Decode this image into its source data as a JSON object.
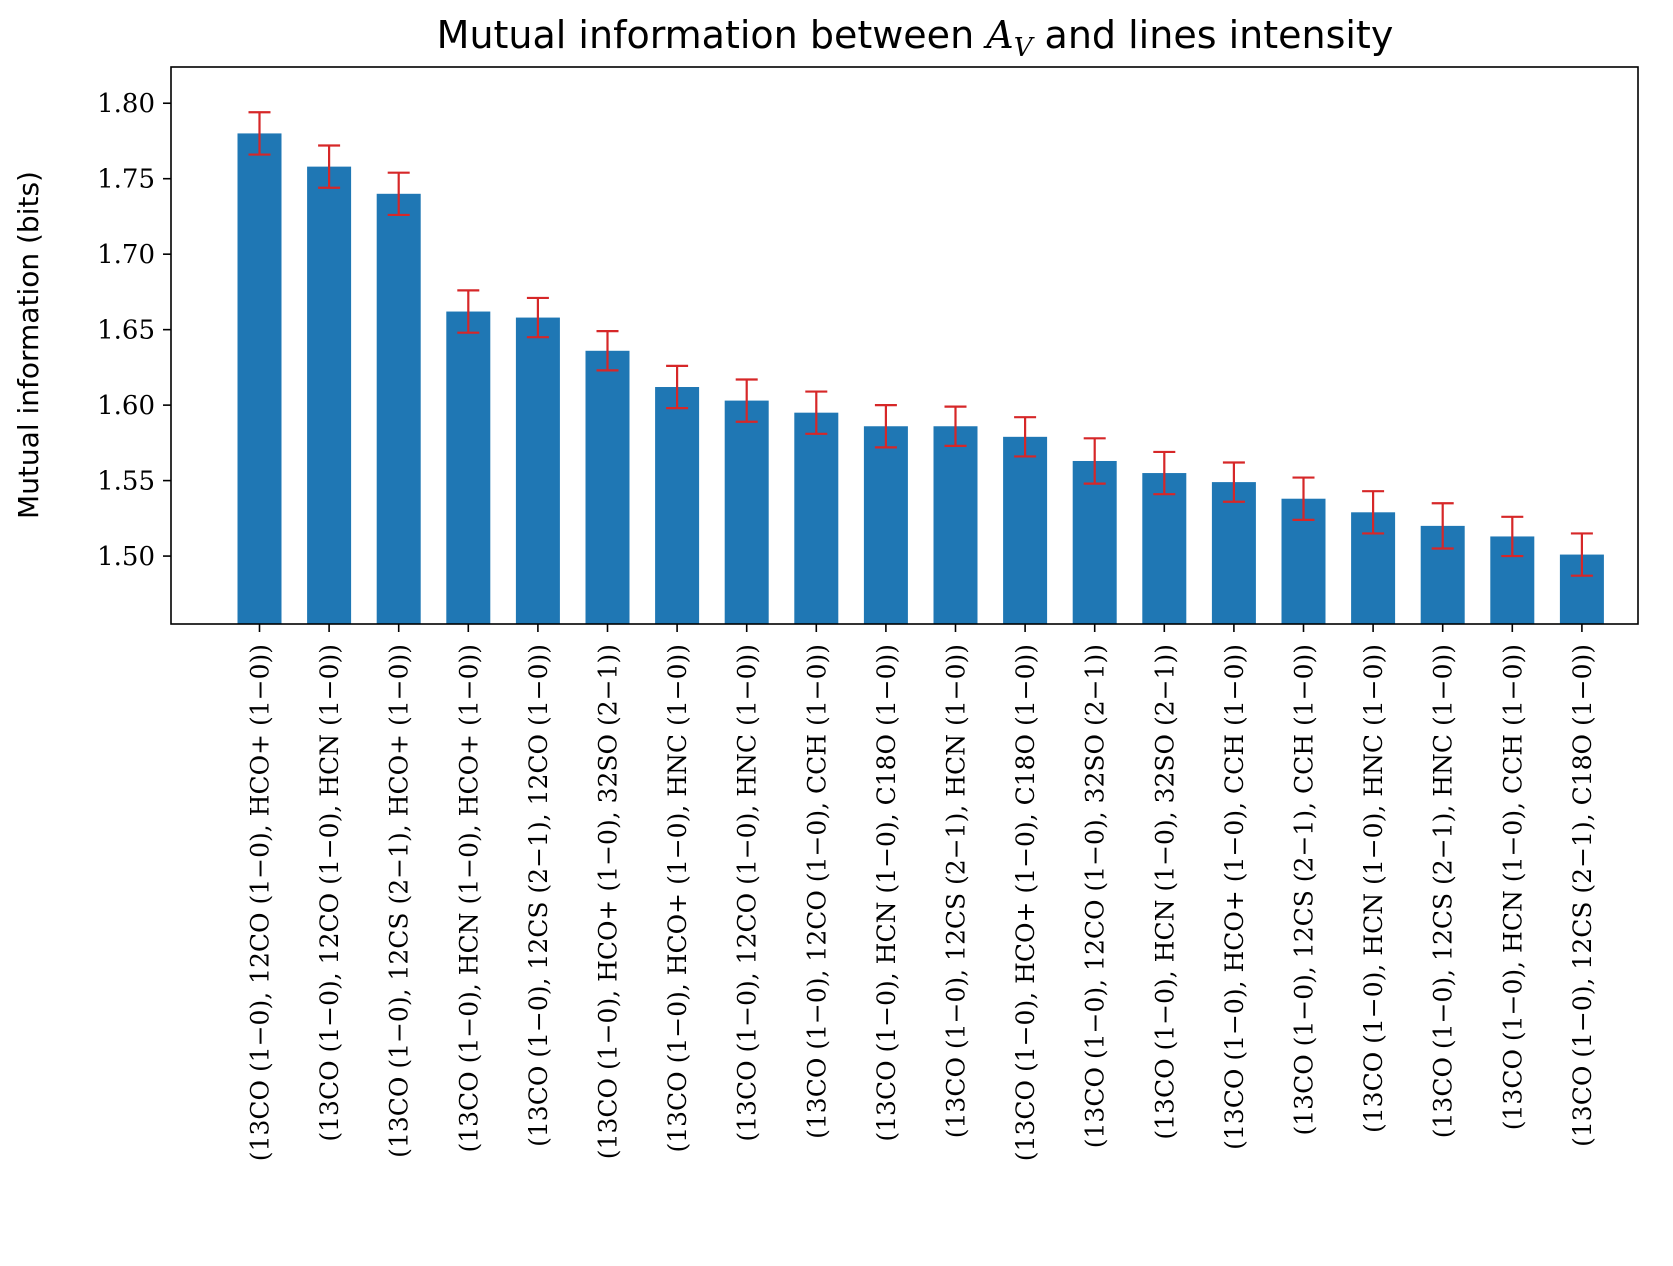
{
  "chart_data": {
    "type": "bar",
    "title": {
      "prefix": "Mutual information between ",
      "math_var": "A",
      "math_sub": "V",
      "suffix": " and lines intensity"
    },
    "xlabel": "",
    "ylabel": "Mutual information (bits)",
    "ylim": [
      1.455,
      1.824
    ],
    "yticks": [
      1.5,
      1.55,
      1.6,
      1.65,
      1.7,
      1.75,
      1.8
    ],
    "ytick_labels": [
      "1.50",
      "1.55",
      "1.60",
      "1.65",
      "1.70",
      "1.75",
      "1.80"
    ],
    "grid": false,
    "legend": "none",
    "bar_color": "#1f77b4",
    "error_color": "#d62728",
    "categories": [
      "(13CO (1−0), 12CO (1−0), HCO+ (1−0))",
      "(13CO (1−0), 12CO (1−0), HCN (1−0))",
      "(13CO (1−0), 12CS (2−1), HCO+ (1−0))",
      "(13CO (1−0), HCN (1−0), HCO+ (1−0))",
      "(13CO (1−0), 12CS (2−1), 12CO (1−0))",
      "(13CO (1−0), HCO+ (1−0), 32SO (2−1))",
      "(13CO (1−0), HCO+ (1−0), HNC (1−0))",
      "(13CO (1−0), 12CO (1−0), HNC (1−0))",
      "(13CO (1−0), 12CO (1−0), CCH (1−0))",
      "(13CO (1−0), HCN (1−0), C18O (1−0))",
      "(13CO (1−0), 12CS (2−1), HCN (1−0))",
      "(13CO (1−0), HCO+ (1−0), C18O (1−0))",
      "(13CO (1−0), 12CO (1−0), 32SO (2−1))",
      "(13CO (1−0), HCN (1−0), 32SO (2−1))",
      "(13CO (1−0), HCO+ (1−0), CCH (1−0))",
      "(13CO (1−0), 12CS (2−1), CCH (1−0))",
      "(13CO (1−0), HCN (1−0), HNC (1−0))",
      "(13CO (1−0), 12CS (2−1), HNC (1−0))",
      "(13CO (1−0), HCN (1−0), CCH (1−0))",
      "(13CO (1−0), 12CS (2−1), C18O (1−0))"
    ],
    "values": [
      1.78,
      1.758,
      1.74,
      1.662,
      1.658,
      1.636,
      1.612,
      1.603,
      1.595,
      1.586,
      1.586,
      1.579,
      1.563,
      1.555,
      1.549,
      1.538,
      1.529,
      1.52,
      1.513,
      1.501
    ],
    "errors": [
      0.014,
      0.014,
      0.014,
      0.014,
      0.013,
      0.013,
      0.014,
      0.014,
      0.014,
      0.014,
      0.013,
      0.013,
      0.015,
      0.014,
      0.013,
      0.014,
      0.014,
      0.015,
      0.013,
      0.014
    ]
  }
}
